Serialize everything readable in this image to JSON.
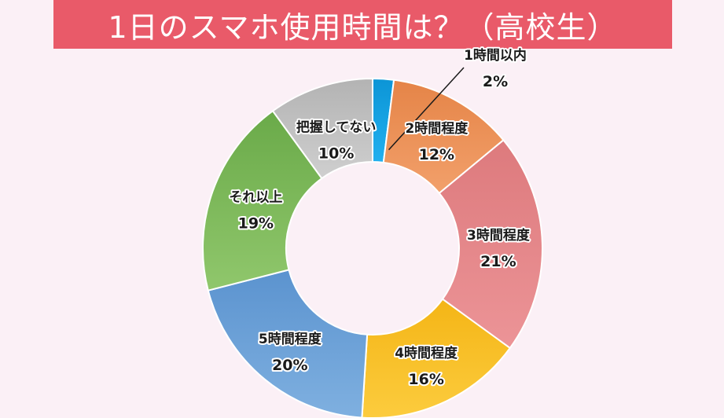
{
  "chart_data": {
    "type": "pie",
    "title": "1日のスマホ使用時間は？（高校生）",
    "categories": [
      "1時間以内",
      "2時間程度",
      "3時間程度",
      "4時間程度",
      "5時間程度",
      "それ以上",
      "把握してない"
    ],
    "values": [
      2,
      12,
      21,
      16,
      20,
      19,
      10
    ],
    "value_labels": [
      "2%",
      "12%",
      "21%",
      "16%",
      "20%",
      "19%",
      "10%"
    ],
    "colors": [
      "#22b0ef",
      "#f2a06b",
      "#ec9497",
      "#fccc3e",
      "#7fb0e0",
      "#90c76c",
      "#cfcfcf"
    ],
    "edge_colors": [
      "#0c95d6",
      "#e58447",
      "#dd7a7d",
      "#f4b516",
      "#5b93cf",
      "#6aaa49",
      "#b3b3b3"
    ],
    "style": "donut",
    "legend": "none"
  }
}
